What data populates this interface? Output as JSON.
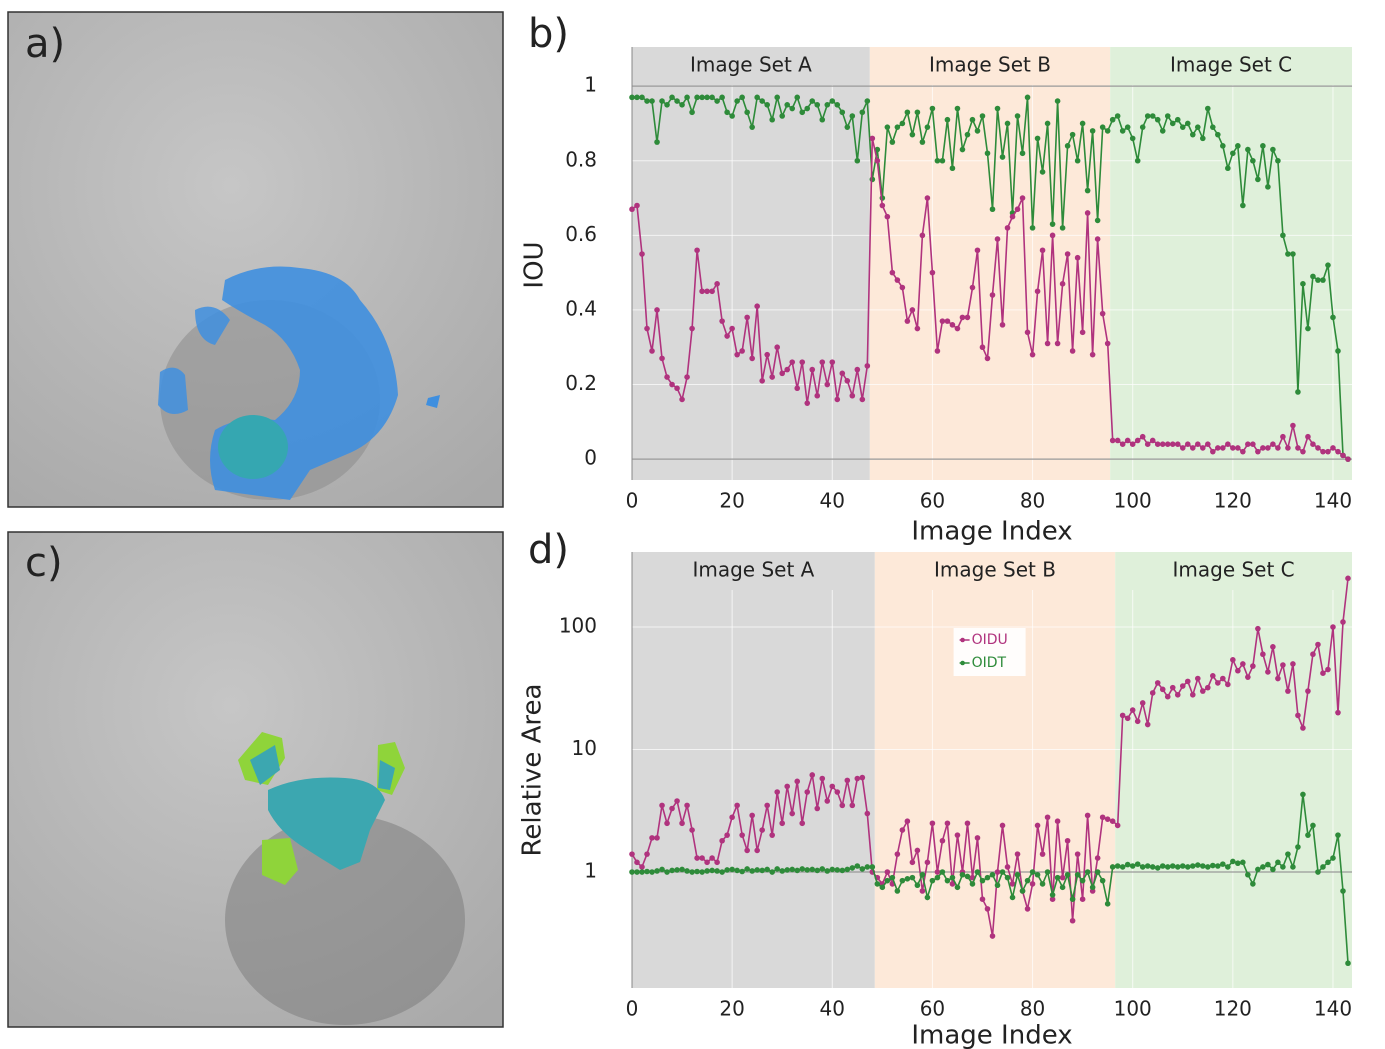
{
  "panel_labels": [
    "a)",
    "b)",
    "c)",
    "d)"
  ],
  "chart_data": [
    {
      "type": "line",
      "y_label": "IOU",
      "x_label": "Image Index",
      "xlim": [
        0,
        143.8
      ],
      "ylim": [
        -0.056,
        1.105
      ],
      "xticks": [
        0,
        20,
        40,
        60,
        80,
        100,
        120,
        140
      ],
      "yticks": [
        0,
        0.2,
        0.4,
        0.6,
        0.8,
        1
      ],
      "grid": true,
      "hlines": [
        0,
        1
      ],
      "bands": [
        {
          "label": "Image Set A",
          "start": 0,
          "end": 47.5,
          "color": "#d9d9d9"
        },
        {
          "label": "Image Set B",
          "start": 47.5,
          "end": 95.5,
          "color": "#fde9d9"
        },
        {
          "label": "Image Set C",
          "start": 95.5,
          "end": 143.8,
          "color": "#dff0da"
        }
      ],
      "x": [
        0,
        1,
        2,
        3,
        4,
        5,
        6,
        7,
        8,
        9,
        10,
        11,
        12,
        13,
        14,
        15,
        16,
        17,
        18,
        19,
        20,
        21,
        22,
        23,
        24,
        25,
        26,
        27,
        28,
        29,
        30,
        31,
        32,
        33,
        34,
        35,
        36,
        37,
        38,
        39,
        40,
        41,
        42,
        43,
        44,
        45,
        46,
        47,
        48,
        49,
        50,
        51,
        52,
        53,
        54,
        55,
        56,
        57,
        58,
        59,
        60,
        61,
        62,
        63,
        64,
        65,
        66,
        67,
        68,
        69,
        70,
        71,
        72,
        73,
        74,
        75,
        76,
        77,
        78,
        79,
        80,
        81,
        82,
        83,
        84,
        85,
        86,
        87,
        88,
        89,
        90,
        91,
        92,
        93,
        94,
        95,
        96,
        97,
        98,
        99,
        100,
        101,
        102,
        103,
        104,
        105,
        106,
        107,
        108,
        109,
        110,
        111,
        112,
        113,
        114,
        115,
        116,
        117,
        118,
        119,
        120,
        121,
        122,
        123,
        124,
        125,
        126,
        127,
        128,
        129,
        130,
        131,
        132,
        133,
        134,
        135,
        136,
        137,
        138,
        139,
        140,
        141,
        142,
        143
      ],
      "series": [
        {
          "name": "OIDT",
          "color": "#2e8b3a",
          "values": [
            0.97,
            0.97,
            0.97,
            0.96,
            0.96,
            0.85,
            0.96,
            0.95,
            0.97,
            0.96,
            0.95,
            0.97,
            0.93,
            0.97,
            0.97,
            0.97,
            0.97,
            0.96,
            0.97,
            0.93,
            0.92,
            0.96,
            0.97,
            0.93,
            0.89,
            0.97,
            0.96,
            0.95,
            0.91,
            0.97,
            0.92,
            0.95,
            0.94,
            0.97,
            0.93,
            0.94,
            0.96,
            0.95,
            0.91,
            0.95,
            0.96,
            0.95,
            0.93,
            0.89,
            0.92,
            0.8,
            0.93,
            0.96,
            0.75,
            0.83,
            0.7,
            0.89,
            0.85,
            0.89,
            0.9,
            0.93,
            0.87,
            0.93,
            0.85,
            0.89,
            0.94,
            0.8,
            0.8,
            0.91,
            0.78,
            0.94,
            0.83,
            0.87,
            0.91,
            0.88,
            0.92,
            0.82,
            0.67,
            0.94,
            0.81,
            0.9,
            0.66,
            0.92,
            0.82,
            0.97,
            0.62,
            0.86,
            0.77,
            0.9,
            0.63,
            0.96,
            0.62,
            0.84,
            0.87,
            0.8,
            0.9,
            0.72,
            0.88,
            0.64,
            0.89,
            0.88,
            0.91,
            0.92,
            0.88,
            0.89,
            0.86,
            0.8,
            0.89,
            0.92,
            0.92,
            0.91,
            0.88,
            0.92,
            0.9,
            0.91,
            0.89,
            0.9,
            0.87,
            0.89,
            0.86,
            0.94,
            0.89,
            0.87,
            0.84,
            0.78,
            0.82,
            0.84,
            0.68,
            0.83,
            0.8,
            0.75,
            0.84,
            0.73,
            0.83,
            0.8,
            0.6,
            0.55,
            0.55,
            0.18,
            0.47,
            0.35,
            0.49,
            0.48,
            0.48,
            0.52,
            0.38,
            0.29,
            0.01,
            0.0
          ]
        },
        {
          "name": "OIDU",
          "color": "#b0337e",
          "values": [
            0.67,
            0.68,
            0.55,
            0.35,
            0.29,
            0.4,
            0.27,
            0.22,
            0.2,
            0.19,
            0.16,
            0.22,
            0.35,
            0.56,
            0.45,
            0.45,
            0.45,
            0.47,
            0.37,
            0.33,
            0.35,
            0.28,
            0.29,
            0.38,
            0.27,
            0.41,
            0.21,
            0.28,
            0.22,
            0.3,
            0.23,
            0.24,
            0.26,
            0.19,
            0.26,
            0.15,
            0.24,
            0.17,
            0.26,
            0.2,
            0.26,
            0.16,
            0.23,
            0.21,
            0.17,
            0.24,
            0.16,
            0.25,
            0.86,
            0.8,
            0.68,
            0.65,
            0.5,
            0.48,
            0.46,
            0.37,
            0.4,
            0.35,
            0.6,
            0.7,
            0.5,
            0.29,
            0.37,
            0.37,
            0.36,
            0.35,
            0.38,
            0.38,
            0.46,
            0.56,
            0.3,
            0.27,
            0.44,
            0.59,
            0.36,
            0.62,
            0.65,
            0.67,
            0.7,
            0.34,
            0.28,
            0.45,
            0.56,
            0.31,
            0.6,
            0.31,
            0.47,
            0.55,
            0.29,
            0.54,
            0.34,
            0.66,
            0.28,
            0.59,
            0.39,
            0.31,
            0.05,
            0.05,
            0.04,
            0.05,
            0.04,
            0.05,
            0.06,
            0.04,
            0.05,
            0.04,
            0.04,
            0.04,
            0.04,
            0.04,
            0.03,
            0.04,
            0.03,
            0.04,
            0.03,
            0.04,
            0.02,
            0.03,
            0.03,
            0.04,
            0.03,
            0.03,
            0.02,
            0.04,
            0.04,
            0.02,
            0.03,
            0.03,
            0.04,
            0.03,
            0.06,
            0.03,
            0.09,
            0.03,
            0.02,
            0.06,
            0.04,
            0.03,
            0.02,
            0.02,
            0.03,
            0.02,
            0.01,
            0.0
          ]
        }
      ]
    },
    {
      "type": "line",
      "y_label": "Relative Area",
      "x_label": "Image Index",
      "log_y": true,
      "xlim": [
        0,
        143.8
      ],
      "ylim": [
        0.113,
        410
      ],
      "xticks": [
        0,
        20,
        40,
        60,
        80,
        100,
        120,
        140
      ],
      "yticks": [
        1,
        10,
        100
      ],
      "grid": true,
      "hlines": [
        1
      ],
      "legend": "upper center",
      "bands": [
        {
          "label": "Image Set A",
          "start": 0,
          "end": 48.5,
          "color": "#d9d9d9"
        },
        {
          "label": "Image Set B",
          "start": 48.5,
          "end": 96.5,
          "color": "#fde9d9"
        },
        {
          "label": "Image Set C",
          "start": 96.5,
          "end": 143.8,
          "color": "#dff0da"
        }
      ],
      "x": [
        0,
        1,
        2,
        3,
        4,
        5,
        6,
        7,
        8,
        9,
        10,
        11,
        12,
        13,
        14,
        15,
        16,
        17,
        18,
        19,
        20,
        21,
        22,
        23,
        24,
        25,
        26,
        27,
        28,
        29,
        30,
        31,
        32,
        33,
        34,
        35,
        36,
        37,
        38,
        39,
        40,
        41,
        42,
        43,
        44,
        45,
        46,
        47,
        48,
        49,
        50,
        51,
        52,
        53,
        54,
        55,
        56,
        57,
        58,
        59,
        60,
        61,
        62,
        63,
        64,
        65,
        66,
        67,
        68,
        69,
        70,
        71,
        72,
        73,
        74,
        75,
        76,
        77,
        78,
        79,
        80,
        81,
        82,
        83,
        84,
        85,
        86,
        87,
        88,
        89,
        90,
        91,
        92,
        93,
        94,
        95,
        96,
        97,
        98,
        99,
        100,
        101,
        102,
        103,
        104,
        105,
        106,
        107,
        108,
        109,
        110,
        111,
        112,
        113,
        114,
        115,
        116,
        117,
        118,
        119,
        120,
        121,
        122,
        123,
        124,
        125,
        126,
        127,
        128,
        129,
        130,
        131,
        132,
        133,
        134,
        135,
        136,
        137,
        138,
        139,
        140,
        141,
        142,
        143
      ],
      "series": [
        {
          "name": "OIDU",
          "color": "#b0337e",
          "values": [
            1.4,
            1.2,
            1.1,
            1.4,
            1.9,
            1.9,
            3.5,
            2.5,
            3.3,
            3.8,
            2.5,
            3.5,
            2.2,
            1.3,
            1.3,
            1.2,
            1.3,
            1.2,
            1.8,
            2.0,
            2.8,
            3.5,
            2.0,
            1.5,
            2.9,
            1.5,
            2.2,
            3.5,
            2.0,
            4.5,
            2.5,
            5.0,
            3.0,
            5.5,
            2.5,
            4.5,
            6.2,
            3.3,
            5.8,
            3.8,
            5.0,
            4.5,
            3.5,
            5.6,
            3.5,
            5.8,
            5.9,
            3.0,
            1.0,
            0.9,
            0.8,
            1.0,
            0.8,
            1.4,
            2.2,
            2.6,
            1.2,
            1.5,
            0.7,
            1.2,
            2.5,
            1.0,
            1.8,
            2.5,
            0.8,
            2.0,
            1.0,
            2.5,
            0.9,
            1.9,
            0.6,
            0.5,
            0.3,
            1.0,
            2.4,
            1.1,
            0.8,
            1.4,
            0.7,
            0.5,
            0.8,
            2.4,
            1.4,
            2.8,
            0.6,
            2.6,
            0.9,
            1.8,
            0.4,
            1.4,
            0.6,
            2.9,
            0.7,
            1.3,
            2.8,
            2.7,
            2.6,
            2.4,
            19,
            18,
            21,
            17,
            24,
            16,
            29,
            35,
            31,
            27,
            32,
            28,
            33,
            36,
            28,
            38,
            30,
            32,
            40,
            35,
            38,
            34,
            54,
            44,
            50,
            39,
            48,
            97,
            60,
            43,
            69,
            38,
            49,
            30,
            50,
            19,
            15,
            30,
            60,
            72,
            42,
            45,
            100,
            20,
            110,
            250
          ]
        },
        {
          "name": "OIDT",
          "color": "#2e8b3a",
          "values": [
            1.0,
            1.0,
            1.0,
            1.01,
            1.0,
            1.02,
            1.05,
            1.0,
            1.03,
            1.04,
            1.05,
            1.02,
            1.0,
            1.01,
            1.0,
            1.02,
            1.03,
            1.02,
            1.0,
            1.04,
            1.05,
            1.03,
            1.01,
            1.06,
            1.02,
            1.04,
            1.03,
            1.05,
            1.0,
            1.06,
            1.02,
            1.04,
            1.05,
            1.03,
            1.06,
            1.04,
            1.05,
            1.03,
            1.06,
            1.02,
            1.05,
            1.04,
            1.03,
            1.05,
            1.08,
            1.12,
            1.06,
            1.1,
            1.1,
            0.8,
            0.75,
            0.85,
            0.9,
            0.7,
            0.85,
            0.88,
            0.9,
            0.78,
            0.95,
            0.62,
            0.85,
            0.9,
            1.0,
            0.85,
            0.9,
            0.75,
            0.95,
            0.92,
            0.8,
            1.0,
            0.85,
            0.9,
            0.95,
            0.78,
            1.0,
            0.9,
            0.62,
            0.95,
            0.7,
            0.85,
            1.0,
            0.95,
            0.8,
            1.0,
            0.65,
            0.9,
            0.75,
            0.95,
            0.6,
            0.95,
            0.85,
            1.0,
            0.75,
            1.0,
            0.85,
            0.55,
            1.1,
            1.12,
            1.1,
            1.15,
            1.12,
            1.16,
            1.1,
            1.12,
            1.1,
            1.08,
            1.12,
            1.1,
            1.12,
            1.1,
            1.12,
            1.1,
            1.12,
            1.14,
            1.12,
            1.1,
            1.13,
            1.12,
            1.16,
            1.1,
            1.22,
            1.18,
            1.2,
            0.95,
            0.8,
            1.05,
            1.1,
            1.15,
            1.05,
            1.2,
            1.1,
            1.4,
            1.1,
            1.6,
            4.3,
            2.0,
            2.4,
            1.0,
            1.1,
            1.2,
            1.3,
            2.0,
            0.7,
            0.18
          ]
        }
      ]
    }
  ]
}
